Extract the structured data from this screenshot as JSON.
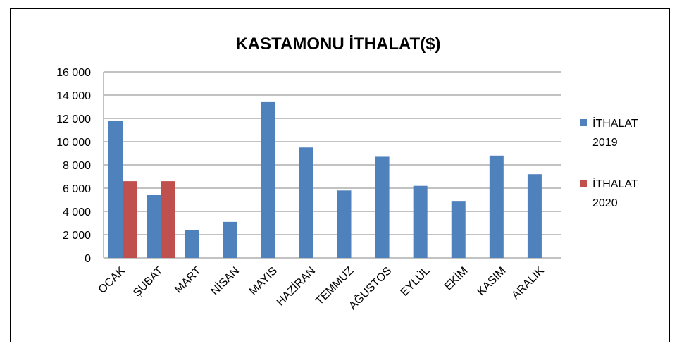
{
  "chart_data": {
    "type": "bar",
    "title": "KASTAMONU İTHALAT($)",
    "categories": [
      "OCAK",
      "ŞUBAT",
      "MART",
      "NİSAN",
      "MAYIS",
      "HAZİRAN",
      "TEMMUZ",
      "AĞUSTOS",
      "EYLÜL",
      "EKİM",
      "KASIM",
      "ARALIK"
    ],
    "series": [
      {
        "name": "İTHALAT 2019",
        "color": "#4F81BD",
        "values": [
          11800,
          5400,
          2400,
          3100,
          13400,
          9500,
          5800,
          8700,
          6200,
          4900,
          8800,
          7200
        ]
      },
      {
        "name": "İTHALAT 2020",
        "color": "#C0504D",
        "values": [
          6600,
          6600,
          null,
          null,
          null,
          null,
          null,
          null,
          null,
          null,
          null,
          null
        ]
      }
    ],
    "legend_lines": [
      [
        "İTHALAT",
        "2019"
      ],
      [
        "İTHALAT",
        "2020"
      ]
    ],
    "yticks": [
      "0",
      "2 000",
      "4 000",
      "6 000",
      "8 000",
      "10 000",
      "12 000",
      "14 000",
      "16 000"
    ],
    "ylim": [
      0,
      16000
    ],
    "grid": true,
    "legend_position": "right"
  }
}
